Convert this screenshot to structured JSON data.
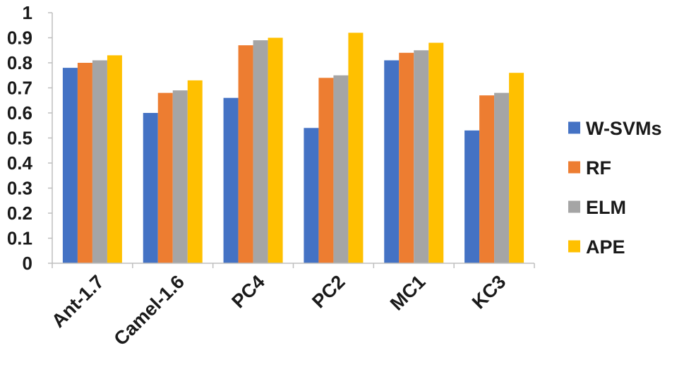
{
  "chart_data": {
    "type": "bar",
    "title": "",
    "xlabel": "",
    "ylabel": "",
    "categories": [
      "Ant-1.7",
      "Camel-1.6",
      "PC4",
      "PC2",
      "MC1",
      "KC3"
    ],
    "series": [
      {
        "name": "W-SVMs",
        "color": "#4472C4",
        "values": [
          0.78,
          0.6,
          0.66,
          0.54,
          0.81,
          0.53
        ]
      },
      {
        "name": "RF",
        "color": "#ED7D31",
        "values": [
          0.8,
          0.68,
          0.87,
          0.74,
          0.84,
          0.67
        ]
      },
      {
        "name": "ELM",
        "color": "#A5A5A5",
        "values": [
          0.81,
          0.69,
          0.89,
          0.75,
          0.85,
          0.68
        ]
      },
      {
        "name": "APE",
        "color": "#FFC000",
        "values": [
          0.83,
          0.73,
          0.9,
          0.92,
          0.88,
          0.76
        ]
      }
    ],
    "ylim": [
      0,
      1
    ],
    "yticks": [
      "0",
      "0.1",
      "0.2",
      "0.3",
      "0.4",
      "0.5",
      "0.6",
      "0.7",
      "0.8",
      "0.9",
      "1"
    ],
    "grid": false,
    "legend": "right"
  }
}
